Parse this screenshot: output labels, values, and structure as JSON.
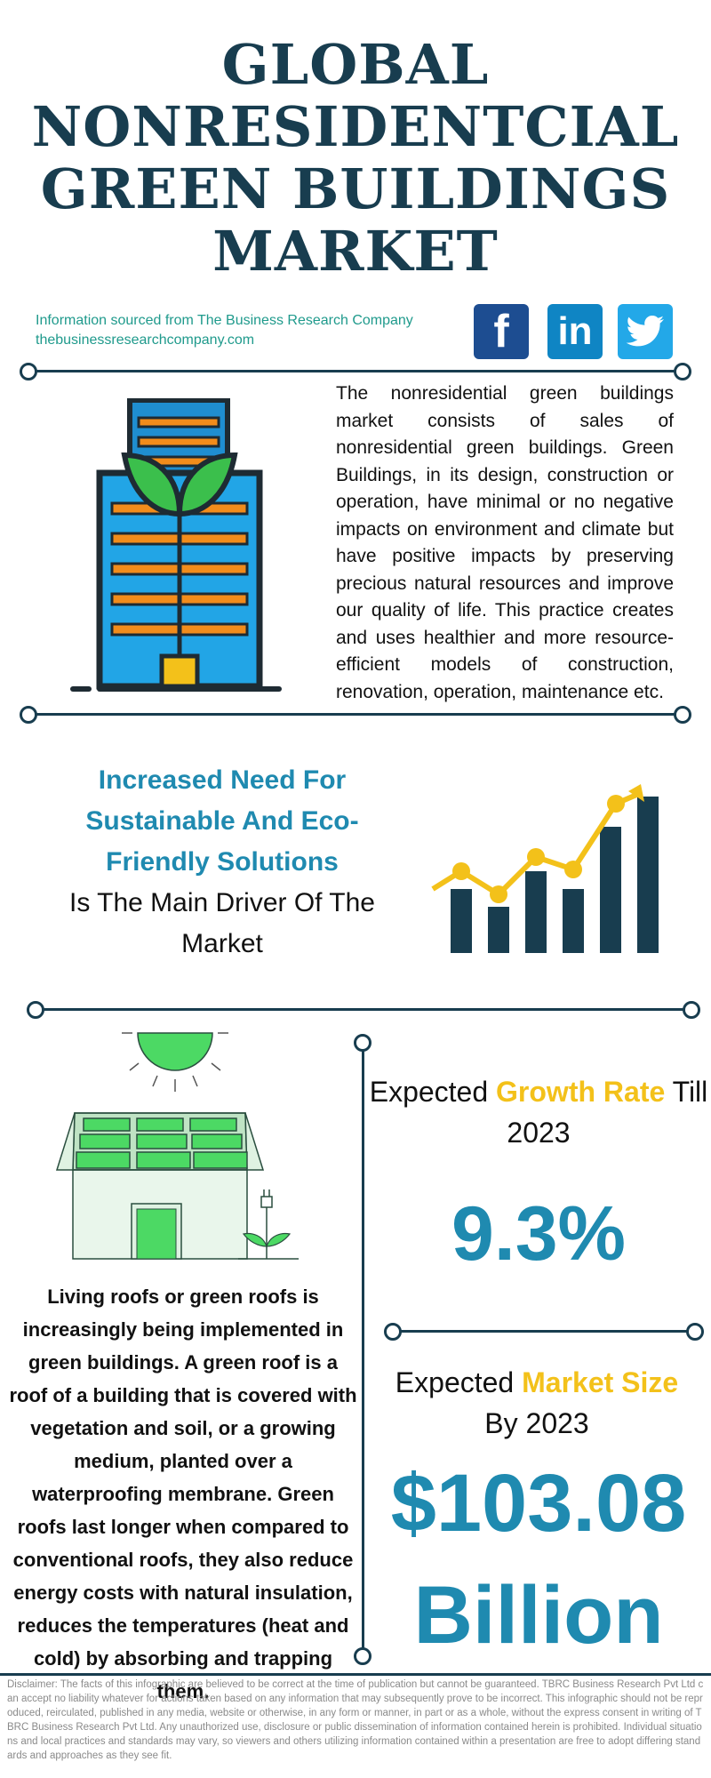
{
  "title_lines": [
    "GLOBAL",
    "NONRESIDENTCIAL",
    "GREEN BUILDINGS",
    "MARKET"
  ],
  "source": {
    "line1": "Information sourced from The Business Research Company",
    "line2": "thebusinessresearchcompany.com"
  },
  "social": {
    "facebook_glyph": "f",
    "linkedin_glyph": "in",
    "icons": [
      "facebook-icon",
      "linkedin-icon",
      "twitter-icon"
    ]
  },
  "intro_text": "The nonresidential green buildings market consists of sales of nonresidential green buildings. Green Buildings, in its design, construction or operation, have minimal or no negative impacts on environment and climate but have positive impacts by preserving precious natural resources and improve our quality of life. This practice creates and uses healthier and more resource-efficient models of construction, renovation, operation, maintenance etc.",
  "driver": {
    "highlight": "Increased Need For Sustainable And Eco-Friendly Solutions",
    "rest": "Is The Main Driver Of The Market"
  },
  "growth": {
    "label_before": "Expected ",
    "label_accent": "Growth Rate",
    "label_after": " Till",
    "year": "2023",
    "value": "9.3%"
  },
  "market_size": {
    "label_before": "Expected ",
    "label_accent": "Market Size",
    "line2": "By 2023",
    "value": "$103.08",
    "unit": "Billion"
  },
  "roof_text": "Living roofs or green roofs is increasingly being implemented in green buildings. A green roof is a roof of a building that is covered with vegetation and soil, or a growing medium, planted over a waterproofing membrane. Green roofs last longer when compared to conventional roofs, they also reduce energy costs with natural insulation, reduces the temperatures (heat and cold) by absorbing and trapping them.",
  "disclaimer": "Disclaimer: The facts of this infographic are believed to be correct at the time of publication but cannot be guaranteed. TBRC Business Research Pvt Ltd can accept no liability whatever for actions taken based on any information that may subsequently prove to be incorrect. This infographic should not be reproduced, reirculated, published in any media, website or otherwise, in any form or manner, in part or as a whole, without the express consent in writing of TBRC Business Research Pvt Ltd. Any unauthorized use, disclosure or public dissemination of information contained herein is prohibited. Individual situations and local practices and standards may vary, so viewers and others utilizing information contained within a presentation are free to adopt differing standards and approaches as they see fit.",
  "colors": {
    "navy": "#183d4f",
    "teal_text": "#1f9a8c",
    "blue_accent": "#1f8ab0",
    "yellow_accent": "#f3c11a",
    "green": "#4cd964"
  }
}
